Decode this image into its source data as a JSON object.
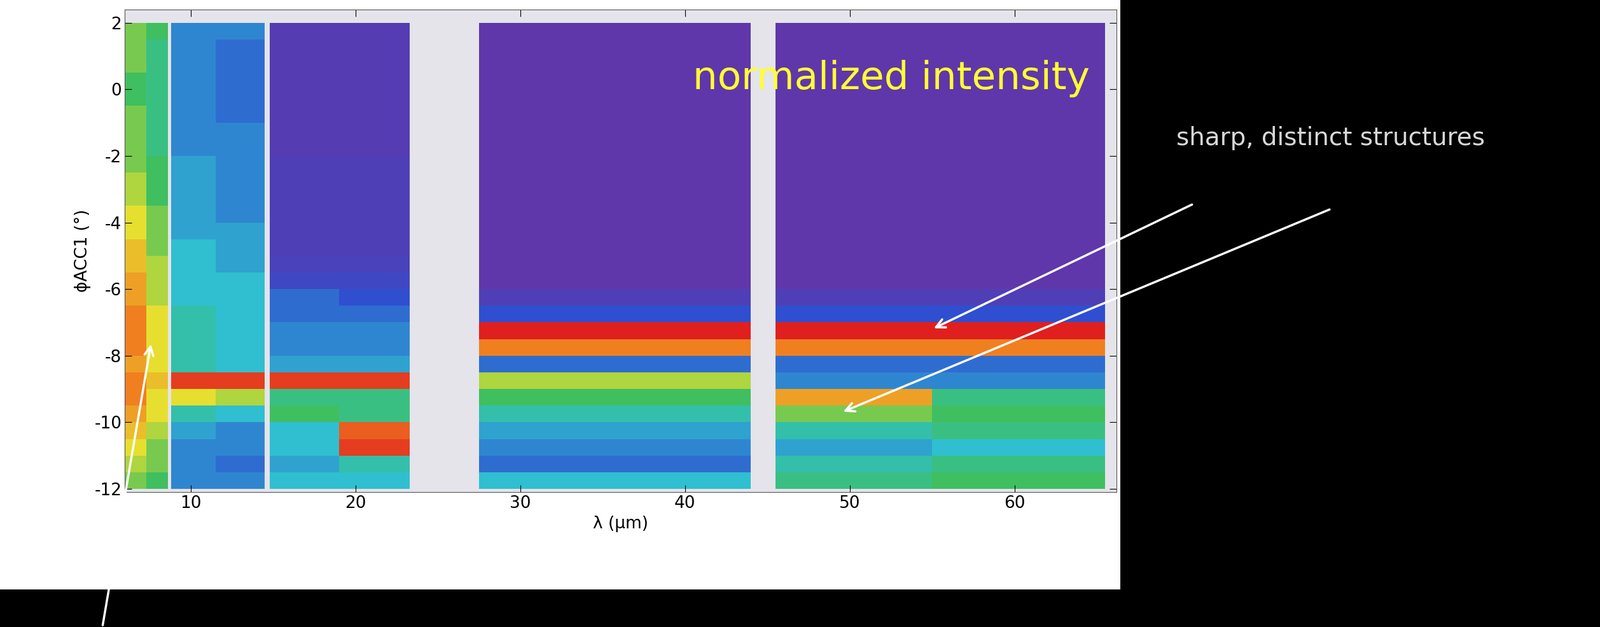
{
  "chart_data": {
    "type": "heatmap",
    "x_label": "λ (μm)",
    "y_label": "ϕACC1 (°)",
    "annotations": [
      "normalized intensity",
      "sharp, distinct structures"
    ],
    "xlim": [
      6,
      66.2
    ],
    "ylim": [
      -12.1,
      2.4
    ],
    "xticks": [
      10,
      20,
      30,
      40,
      50,
      60
    ],
    "yticks": [
      -12,
      -10,
      -8,
      -6,
      -4,
      -2,
      0,
      2
    ],
    "value_range": [
      0,
      1
    ],
    "x_edges": [
      6,
      7.3,
      8.6,
      8.8,
      11.5,
      14.5,
      14.8,
      19,
      23.3,
      27.5,
      36,
      44,
      45.5,
      55,
      65.5
    ],
    "y_edges": [
      -12,
      -11.5,
      -11,
      -10.5,
      -10,
      -9.5,
      -9,
      -8.5,
      -8,
      -7.5,
      -7,
      -6.5,
      -6,
      -5.5,
      -5,
      -4.5,
      -4,
      -3.5,
      -3,
      -2.5,
      -2,
      -1.5,
      -1,
      -0.5,
      0,
      0.5,
      1,
      1.5,
      2
    ],
    "cells": [
      [
        0.6,
        0.55,
        null,
        0.3,
        0.3,
        null,
        0.4,
        0.4,
        null,
        0.4,
        0.4,
        null,
        0.5,
        0.55
      ],
      [
        0.65,
        0.6,
        null,
        0.3,
        0.25,
        null,
        0.35,
        0.45,
        null,
        0.25,
        0.25,
        null,
        0.45,
        0.5
      ],
      [
        0.7,
        0.6,
        null,
        0.3,
        0.3,
        null,
        0.4,
        0.95,
        null,
        0.3,
        0.3,
        null,
        0.35,
        0.4
      ],
      [
        0.75,
        0.65,
        null,
        0.35,
        0.3,
        null,
        0.4,
        0.9,
        null,
        0.35,
        0.35,
        null,
        0.45,
        0.5
      ],
      [
        0.8,
        0.7,
        null,
        0.45,
        0.4,
        null,
        0.55,
        0.5,
        null,
        0.45,
        0.45,
        null,
        0.6,
        0.55
      ],
      [
        0.85,
        0.7,
        null,
        0.7,
        0.65,
        null,
        0.5,
        0.5,
        null,
        0.55,
        0.55,
        null,
        0.8,
        0.5
      ],
      [
        0.85,
        0.75,
        null,
        0.95,
        0.95,
        null,
        0.95,
        0.95,
        null,
        0.65,
        0.65,
        null,
        0.3,
        0.3
      ],
      [
        0.8,
        0.7,
        null,
        0.45,
        0.4,
        null,
        0.35,
        0.35,
        null,
        0.25,
        0.25,
        null,
        0.25,
        0.25
      ],
      [
        0.85,
        0.7,
        null,
        0.45,
        0.4,
        null,
        0.3,
        0.3,
        null,
        0.85,
        0.85,
        null,
        0.85,
        0.85
      ],
      [
        0.85,
        0.7,
        null,
        0.45,
        0.4,
        null,
        0.3,
        0.3,
        null,
        1.0,
        1.0,
        null,
        1.0,
        1.0
      ],
      [
        0.85,
        0.7,
        null,
        0.45,
        0.4,
        null,
        0.25,
        0.25,
        null,
        0.2,
        0.2,
        null,
        0.2,
        0.2
      ],
      [
        0.8,
        0.65,
        null,
        0.4,
        0.4,
        null,
        0.25,
        0.2,
        null,
        0.1,
        0.1,
        null,
        0.1,
        0.1
      ],
      [
        0.8,
        0.65,
        null,
        0.4,
        0.4,
        null,
        0.15,
        0.15,
        null,
        0.05,
        0.05,
        null,
        0.05,
        0.05
      ],
      [
        0.75,
        0.65,
        null,
        0.4,
        0.35,
        null,
        0.12,
        0.12,
        null,
        0.05,
        0.05,
        null,
        0.05,
        0.05
      ],
      [
        0.75,
        0.6,
        null,
        0.4,
        0.35,
        null,
        0.1,
        0.1,
        null,
        0.05,
        0.05,
        null,
        0.05,
        0.05
      ],
      [
        0.7,
        0.6,
        null,
        0.35,
        0.35,
        null,
        0.1,
        0.1,
        null,
        0.05,
        0.05,
        null,
        0.05,
        0.05
      ],
      [
        0.7,
        0.6,
        null,
        0.35,
        0.3,
        null,
        0.1,
        0.1,
        null,
        0.05,
        0.05,
        null,
        0.05,
        0.05
      ],
      [
        0.65,
        0.55,
        null,
        0.35,
        0.3,
        null,
        0.1,
        0.1,
        null,
        0.05,
        0.05,
        null,
        0.05,
        0.05
      ],
      [
        0.65,
        0.55,
        null,
        0.35,
        0.3,
        null,
        0.1,
        0.1,
        null,
        0.05,
        0.05,
        null,
        0.05,
        0.05
      ],
      [
        0.6,
        0.55,
        null,
        0.35,
        0.3,
        null,
        0.1,
        0.1,
        null,
        0.05,
        0.05,
        null,
        0.05,
        0.05
      ],
      [
        0.6,
        0.5,
        null,
        0.3,
        0.3,
        null,
        0.08,
        0.08,
        null,
        0.05,
        0.05,
        null,
        0.05,
        0.05
      ],
      [
        0.6,
        0.5,
        null,
        0.3,
        0.3,
        null,
        0.08,
        0.08,
        null,
        0.05,
        0.05,
        null,
        0.05,
        0.05
      ],
      [
        0.6,
        0.5,
        null,
        0.3,
        0.25,
        null,
        0.08,
        0.08,
        null,
        0.05,
        0.05,
        null,
        0.05,
        0.05
      ],
      [
        0.55,
        0.5,
        null,
        0.3,
        0.25,
        null,
        0.08,
        0.08,
        null,
        0.05,
        0.05,
        null,
        0.05,
        0.05
      ],
      [
        0.55,
        0.5,
        null,
        0.3,
        0.25,
        null,
        0.08,
        0.08,
        null,
        0.05,
        0.05,
        null,
        0.05,
        0.05
      ],
      [
        0.6,
        0.5,
        null,
        0.3,
        0.25,
        null,
        0.08,
        0.08,
        null,
        0.05,
        0.05,
        null,
        0.05,
        0.05
      ],
      [
        0.6,
        0.5,
        null,
        0.3,
        0.25,
        null,
        0.08,
        0.08,
        null,
        0.05,
        0.05,
        null,
        0.05,
        0.05
      ],
      [
        0.6,
        0.55,
        null,
        0.3,
        0.3,
        null,
        0.08,
        0.08,
        null,
        0.05,
        0.05,
        null,
        0.05,
        0.05
      ]
    ]
  }
}
